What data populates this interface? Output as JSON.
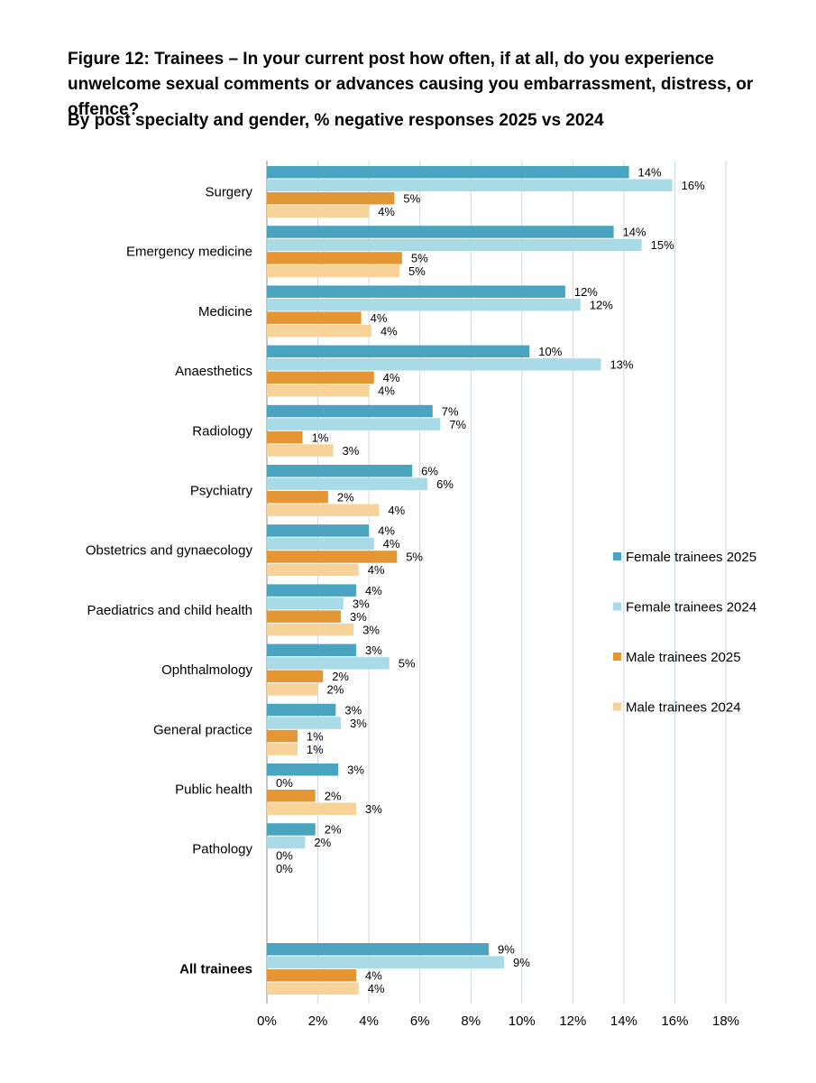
{
  "header": {
    "title": "Figure 12: Trainees – In your current post how often, if at all, do you experience unwelcome sexual comments or advances causing you embarrassment, distress, or offence?",
    "subtitle": "By post specialty and gender, % negative responses 2025 vs 2024"
  },
  "colors": {
    "female_2025": "#4aa3bf",
    "female_2024": "#a9dbe7",
    "male_2025": "#e39633",
    "male_2024": "#f7d39a",
    "grid": "#c9d9e6",
    "axis": "#888888"
  },
  "chart_data": {
    "type": "bar",
    "orientation": "horizontal",
    "title": "Figure 12: Trainees – In your current post how often, if at all, do you experience unwelcome sexual comments or advances causing you embarrassment, distress, or offence?",
    "subtitle": "By post specialty and gender, % negative responses 2025 vs 2024",
    "xlabel": "",
    "ylabel": "",
    "xlim": [
      0,
      18
    ],
    "x_ticks": [
      "0%",
      "2%",
      "4%",
      "6%",
      "8%",
      "10%",
      "12%",
      "14%",
      "16%",
      "18%"
    ],
    "grid": true,
    "legend_position": "right",
    "categories": [
      "Surgery",
      "Emergency medicine",
      "Medicine",
      "Anaesthetics",
      "Radiology",
      "Psychiatry",
      "Obstetrics and gynaecology",
      "Paediatrics and child health",
      "Ophthalmology",
      "General practice",
      "Public health",
      "Pathology",
      "All trainees"
    ],
    "series": [
      {
        "name": "Female trainees 2025",
        "color_key": "female_2025",
        "values": [
          14.2,
          13.6,
          11.7,
          10.3,
          6.5,
          5.7,
          4.0,
          3.5,
          3.5,
          2.7,
          2.8,
          1.9,
          8.7
        ],
        "labels": [
          "14%",
          "14%",
          "12%",
          "10%",
          "7%",
          "6%",
          "4%",
          "4%",
          "3%",
          "3%",
          "3%",
          "2%",
          "9%"
        ]
      },
      {
        "name": "Female trainees 2024",
        "color_key": "female_2024",
        "values": [
          15.9,
          14.7,
          12.3,
          13.1,
          6.8,
          6.3,
          4.2,
          3.0,
          4.8,
          2.9,
          0,
          1.5,
          9.3
        ],
        "labels": [
          "16%",
          "15%",
          "12%",
          "13%",
          "7%",
          "6%",
          "4%",
          "3%",
          "5%",
          "3%",
          "0%",
          "2%",
          "9%"
        ]
      },
      {
        "name": "Male trainees 2025",
        "color_key": "male_2025",
        "values": [
          5.0,
          5.3,
          3.7,
          4.2,
          1.4,
          2.4,
          5.1,
          2.9,
          2.2,
          1.2,
          1.9,
          0,
          3.5
        ],
        "labels": [
          "5%",
          "5%",
          "4%",
          "4%",
          "1%",
          "2%",
          "5%",
          "3%",
          "2%",
          "1%",
          "2%",
          "0%",
          "4%"
        ]
      },
      {
        "name": "Male trainees 2024",
        "color_key": "male_2024",
        "values": [
          4.0,
          5.2,
          4.1,
          4.0,
          2.6,
          4.4,
          3.6,
          3.4,
          2.0,
          1.2,
          3.5,
          0,
          3.6
        ],
        "labels": [
          "4%",
          "5%",
          "4%",
          "4%",
          "3%",
          "4%",
          "4%",
          "3%",
          "2%",
          "1%",
          "3%",
          "0%",
          "4%"
        ]
      }
    ],
    "legend": [
      "Female trainees 2025",
      "Female trainees 2024",
      "Male trainees 2025",
      "Male trainees 2024"
    ]
  }
}
